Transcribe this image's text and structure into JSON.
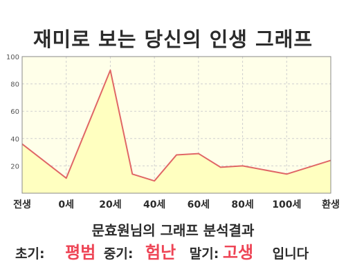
{
  "title": "재미로 보는 당신의 인생 그래프",
  "chart_data": {
    "type": "area",
    "x": [
      "전생",
      "0세",
      "20세",
      "40세",
      "60세",
      "80세",
      "100세",
      "환생"
    ],
    "y_ticks": [
      20,
      40,
      60,
      80,
      100
    ],
    "ylim": [
      0,
      100
    ],
    "points": [
      {
        "i": 0,
        "y": 36
      },
      {
        "i": 1,
        "y": 11
      },
      {
        "i": 2,
        "y": 90
      },
      {
        "i": 2.5,
        "y": 14
      },
      {
        "i": 3,
        "y": 9
      },
      {
        "i": 3.5,
        "y": 28
      },
      {
        "i": 4,
        "y": 29
      },
      {
        "i": 4.5,
        "y": 19
      },
      {
        "i": 5,
        "y": 20
      },
      {
        "i": 6,
        "y": 14
      },
      {
        "i": 7,
        "y": 24
      }
    ],
    "colors": {
      "line": "#e06666",
      "fill": "#ffffc0",
      "plot_bg": "#ffffe9",
      "grid": "#cfcfcf"
    }
  },
  "subtitle": "문효원님의 그래프 분석결과",
  "result": {
    "early_label": "초기:",
    "early_value": "평범",
    "mid_label": "중기:",
    "mid_value": "험난",
    "late_label": "말기:",
    "late_value": "고생",
    "ending": "입니다"
  }
}
